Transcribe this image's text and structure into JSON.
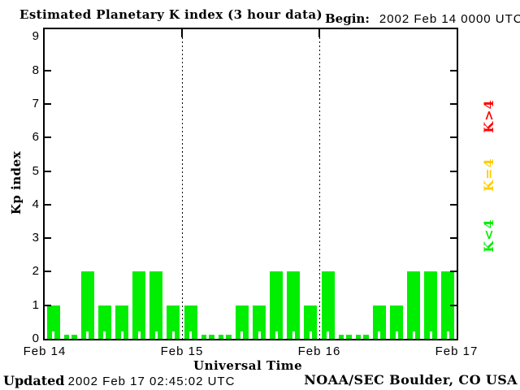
{
  "header": {
    "title": "Estimated Planetary K index (3 hour data)",
    "begin_label": "Begin:",
    "begin_value": "2002 Feb 14 0000 UTC"
  },
  "chart_data": {
    "type": "bar",
    "title": "Estimated Planetary K index (3 hour data)",
    "xlabel": "Universal Time",
    "ylabel": "Kp index",
    "ylim": [
      0,
      9
    ],
    "yticks": [
      0,
      1,
      2,
      3,
      4,
      5,
      6,
      7,
      8,
      9
    ],
    "interval_hours": 3,
    "grid": "dotted vertical lines at day boundaries",
    "day_labels": [
      "Feb 14",
      "Feb 15",
      "Feb 16",
      "Feb 17"
    ],
    "values": [
      1,
      0,
      2,
      1,
      1,
      2,
      2,
      1,
      1,
      0,
      0,
      1,
      1,
      2,
      2,
      1,
      2,
      0,
      0,
      1,
      1,
      2,
      2,
      2
    ],
    "values_by_day": {
      "Feb 14": [
        1,
        0,
        2,
        1,
        1,
        2,
        2,
        1
      ],
      "Feb 15": [
        1,
        0,
        0,
        1,
        1,
        2,
        2,
        1
      ],
      "Feb 16": [
        2,
        0,
        0,
        1,
        1,
        2,
        2,
        2
      ]
    },
    "bar_color": "#00ee00",
    "axis_color": "#000000",
    "legend_position": "right",
    "legend": [
      {
        "label": "K>4",
        "color": "#ff0000"
      },
      {
        "label": "K=4",
        "color": "#ffcc00"
      },
      {
        "label": "K<4",
        "color": "#00ee00"
      }
    ]
  },
  "footer": {
    "updated_label": "Updated",
    "updated_value": "2002 Feb 17 02:45:02 UTC",
    "credit": "NOAA/SEC Boulder, CO USA"
  }
}
